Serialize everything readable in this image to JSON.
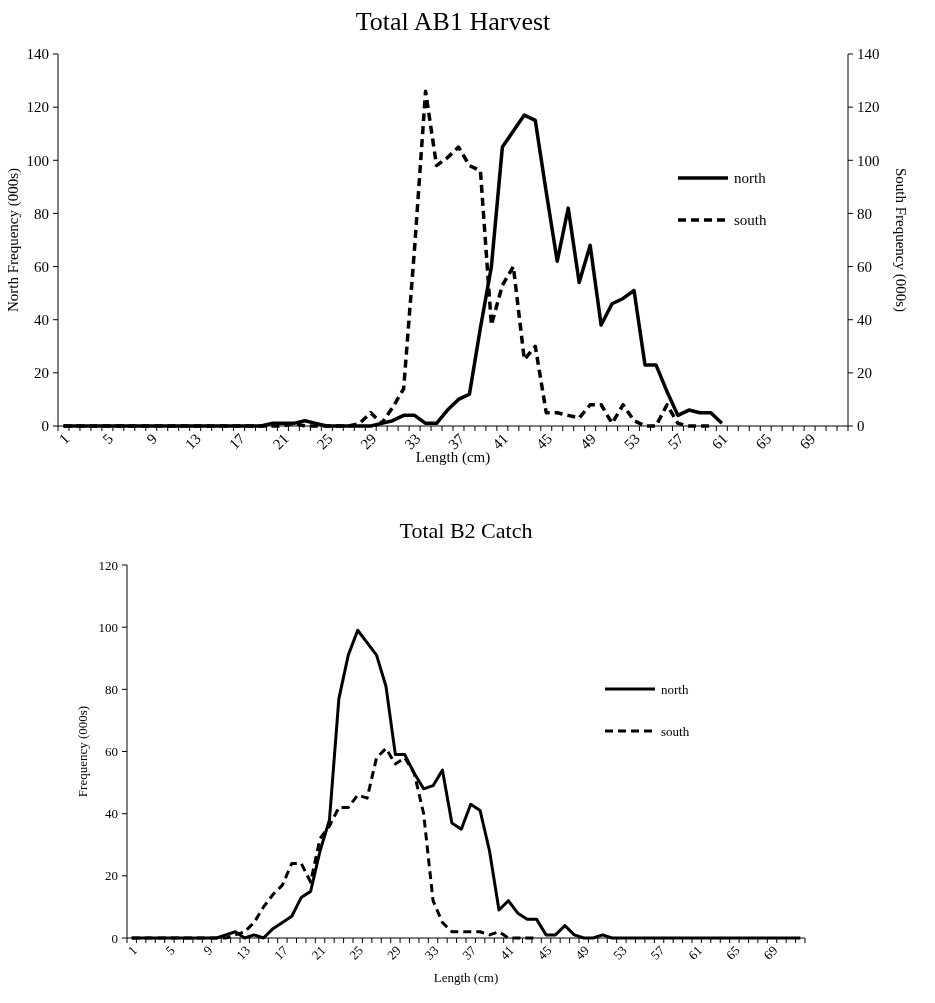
{
  "chart_data": [
    {
      "type": "line",
      "title": "Total AB1 Harvest",
      "xlabel": "Length (cm)",
      "ylabel": "North Frequency (000s)",
      "y2label": "South Frequency (000s)",
      "categories": [
        "1",
        null,
        null,
        null,
        "5",
        null,
        null,
        null,
        "9",
        null,
        null,
        null,
        "13",
        null,
        null,
        null,
        "17",
        null,
        null,
        null,
        "21",
        null,
        null,
        null,
        "25",
        null,
        null,
        null,
        "29",
        null,
        null,
        null,
        "33",
        null,
        null,
        null,
        "37",
        null,
        null,
        null,
        "41",
        null,
        null,
        null,
        "45",
        null,
        null,
        null,
        "49",
        null,
        null,
        null,
        "53",
        null,
        null,
        null,
        "57",
        null,
        null,
        null,
        "61",
        null,
        null,
        null,
        "65",
        null,
        null,
        null,
        "69",
        null,
        null,
        null
      ],
      "ylim": [
        0,
        140
      ],
      "yticks": [
        0,
        20,
        40,
        60,
        80,
        100,
        120,
        140
      ],
      "y2lim": [
        0,
        140
      ],
      "y2ticks": [
        0,
        20,
        40,
        60,
        80,
        100,
        120,
        140
      ],
      "legend": "right",
      "series": [
        {
          "name": "north",
          "color": "#000000",
          "line_style": "solid",
          "values": [
            0,
            0,
            0,
            0,
            0,
            0,
            0,
            0,
            0,
            0,
            0,
            0,
            0,
            0,
            0,
            0,
            0,
            0,
            0,
            1,
            1,
            1,
            2,
            1,
            0,
            0,
            0,
            0,
            0,
            1,
            2,
            4,
            4,
            1,
            1,
            6,
            10,
            12,
            37,
            60,
            105,
            111,
            117,
            115,
            88,
            62,
            82,
            54,
            68,
            38,
            46,
            48,
            51,
            23,
            23,
            13,
            4,
            6,
            5,
            5,
            1,
            null,
            null,
            null,
            null,
            null,
            null,
            null,
            null,
            null,
            null,
            null
          ]
        },
        {
          "name": "south",
          "color": "#000000",
          "line_style": "dashed",
          "axis": "y2",
          "values": [
            0,
            0,
            0,
            0,
            0,
            0,
            0,
            0,
            0,
            0,
            0,
            0,
            0,
            0,
            0,
            0,
            0,
            0,
            0,
            0,
            0,
            1,
            0,
            0,
            0,
            0,
            0,
            1,
            5,
            1,
            7,
            14,
            67,
            126,
            98,
            101,
            105,
            98,
            96,
            38,
            53,
            60,
            25,
            30,
            5,
            5,
            4,
            3,
            8,
            8,
            1,
            8,
            2,
            0,
            0,
            8,
            1,
            0,
            0,
            0,
            null,
            null,
            null,
            null,
            null,
            null,
            null,
            null,
            null,
            null,
            null,
            null
          ]
        }
      ]
    },
    {
      "type": "line",
      "title": "Total B2 Catch",
      "xlabel": "Length (cm)",
      "ylabel": "Frequency (000s)",
      "categories": [
        "1",
        null,
        null,
        null,
        "5",
        null,
        null,
        null,
        "9",
        null,
        null,
        null,
        "13",
        null,
        null,
        null,
        "17",
        null,
        null,
        null,
        "21",
        null,
        null,
        null,
        "25",
        null,
        null,
        null,
        "29",
        null,
        null,
        null,
        "33",
        null,
        null,
        null,
        "37",
        null,
        null,
        null,
        "41",
        null,
        null,
        null,
        "45",
        null,
        null,
        null,
        "49",
        null,
        null,
        null,
        "53",
        null,
        null,
        null,
        "57",
        null,
        null,
        null,
        "61",
        null,
        null,
        null,
        "65",
        null,
        null,
        null,
        "69",
        null,
        null,
        null
      ],
      "ylim": [
        0,
        120
      ],
      "yticks": [
        0,
        20,
        40,
        60,
        80,
        100,
        120
      ],
      "legend": "right",
      "series": [
        {
          "name": "north",
          "color": "#000000",
          "line_style": "solid",
          "values": [
            0,
            0,
            0,
            0,
            0,
            0,
            0,
            0,
            0,
            0,
            1,
            2,
            0,
            1,
            0,
            3,
            5,
            7,
            13,
            15,
            28,
            38,
            77,
            91,
            99,
            95,
            91,
            81,
            59,
            59,
            53,
            48,
            49,
            54,
            37,
            35,
            43,
            41,
            28,
            9,
            12,
            8,
            6,
            6,
            1,
            1,
            4,
            1,
            0,
            0,
            1,
            0,
            0,
            0,
            0,
            0,
            0,
            0,
            0,
            0,
            0,
            0,
            0,
            0,
            0,
            0,
            0,
            0,
            0,
            0,
            0,
            0
          ]
        },
        {
          "name": "south",
          "color": "#000000",
          "line_style": "dashed",
          "values": [
            0,
            0,
            0,
            0,
            0,
            0,
            0,
            0,
            0,
            0,
            0,
            1,
            2,
            5,
            10,
            14,
            17,
            24,
            24,
            18,
            32,
            36,
            42,
            42,
            46,
            45,
            58,
            61,
            56,
            58,
            53,
            40,
            12,
            5,
            2,
            2,
            2,
            2,
            1,
            2,
            0,
            0,
            0,
            0,
            null,
            null,
            null,
            null,
            null,
            null,
            null,
            null,
            null,
            null,
            null,
            null,
            null,
            null,
            null,
            null,
            null,
            null,
            null,
            null,
            null,
            null,
            null,
            null,
            null,
            null,
            null,
            null
          ]
        }
      ]
    }
  ]
}
